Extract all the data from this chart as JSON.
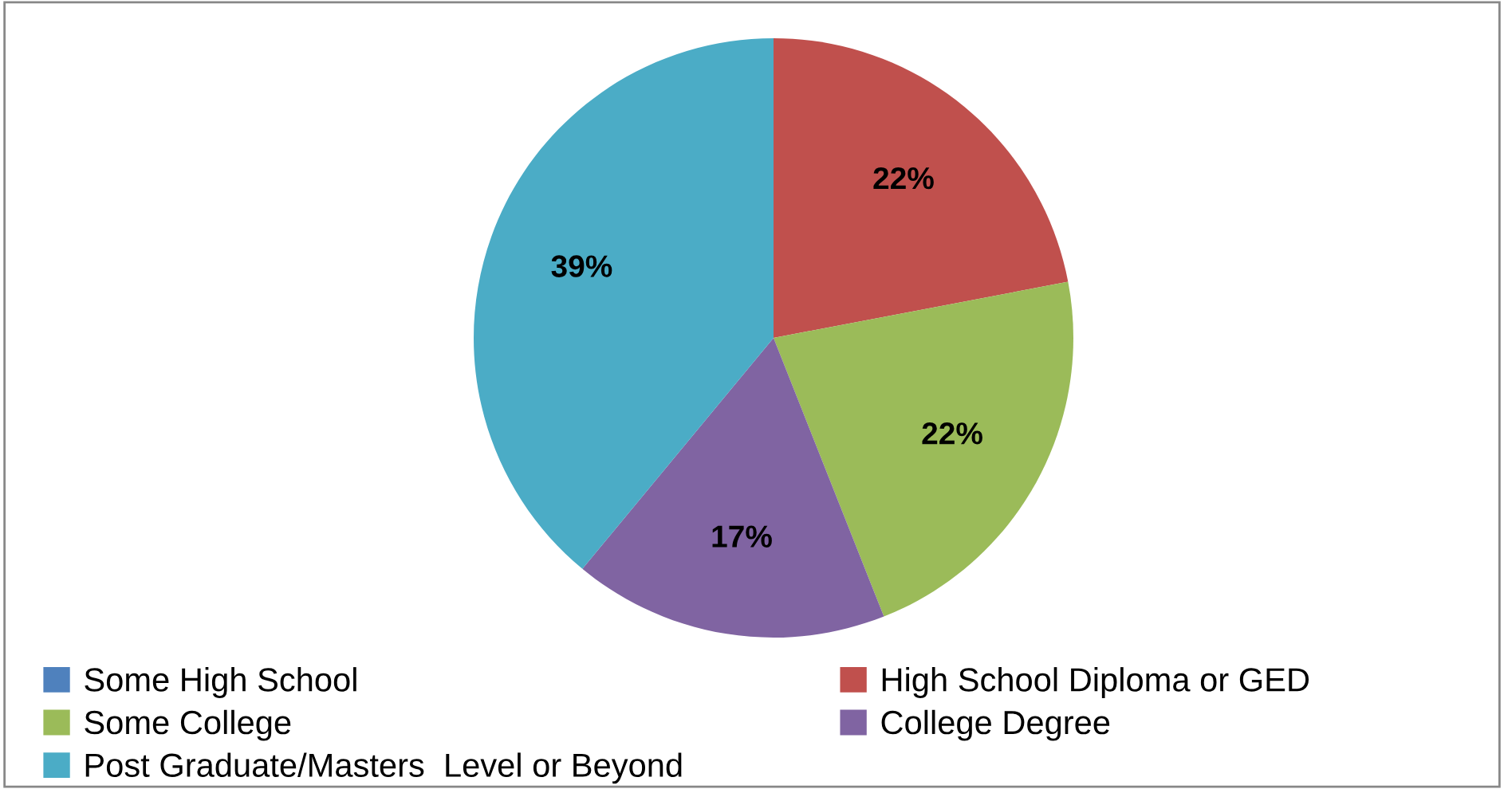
{
  "chart_data": {
    "type": "pie",
    "categories": [
      "Some High School",
      "High School Diploma or GED",
      "Some College",
      "College Degree",
      "Post Graduate/Masters  Level or Beyond"
    ],
    "values": [
      0,
      22,
      22,
      17,
      39
    ],
    "colors": [
      "#4f81bd",
      "#c0504d",
      "#9bbb59",
      "#8064a2",
      "#4bacc6"
    ],
    "value_labels": [
      null,
      "22%",
      "22%",
      "17%",
      "39%"
    ],
    "legend": "bottom"
  }
}
